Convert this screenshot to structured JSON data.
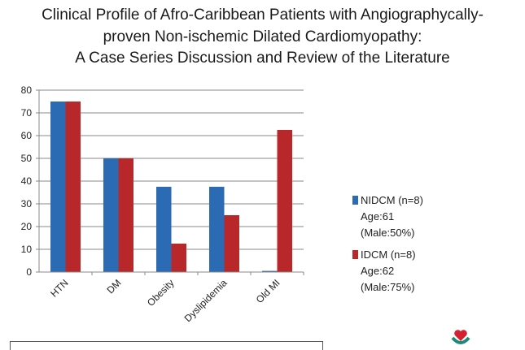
{
  "title_lines": [
    "Clinical Profile of Afro-Caribbean Patients with Angiographycally-",
    "proven Non-ischemic Dilated Cardiomyopathy:",
    "A Case Series Discussion and Review of the Literature"
  ],
  "chart_data": {
    "type": "bar",
    "categories": [
      "HTN",
      "DM",
      "Obesity",
      "Dyslipidemia",
      "Old MI"
    ],
    "series": [
      {
        "name": "NIDCM (n=8)",
        "values": [
          75,
          50,
          37.5,
          37.5,
          0.5
        ],
        "color": "#2a6bb3"
      },
      {
        "name": "IDCM (n=8)",
        "values": [
          75,
          50,
          12.5,
          25,
          62.5
        ],
        "color": "#b8282a"
      }
    ],
    "ylim": [
      0,
      80
    ],
    "yticks": [
      "0",
      "10",
      "20",
      "30",
      "40",
      "50",
      "60",
      "70",
      "80"
    ],
    "grid": true,
    "legend_position": "right"
  },
  "legend": [
    {
      "label": "NIDCM (n=8)",
      "lines": [
        "Age:61",
        "(Male:50%)"
      ]
    },
    {
      "label": "IDCM (n=8)",
      "lines": [
        "Age:62",
        "(Male:75%)"
      ]
    }
  ]
}
